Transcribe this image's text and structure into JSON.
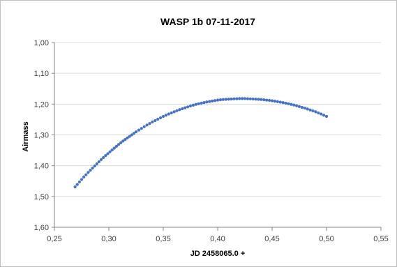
{
  "chart_data": {
    "type": "scatter",
    "title": "WASP 1b 07-11-2017",
    "xlabel": "JD 2458065.0 +",
    "ylabel": "Airmass",
    "xlim": [
      0.25,
      0.55
    ],
    "ylim": [
      1.0,
      1.6
    ],
    "y_reversed": true,
    "x_ticks": [
      "0,25",
      "0,30",
      "0,35",
      "0,40",
      "0,45",
      "0,50",
      "0,55"
    ],
    "y_ticks": [
      "1,00",
      "1,10",
      "1,20",
      "1,30",
      "1,40",
      "1,50",
      "1,60"
    ],
    "grid": "horizontal",
    "legend": "none",
    "marker_color": "#4472C4",
    "series": [
      {
        "x": [
          0.269,
          0.273,
          0.277,
          0.281,
          0.285,
          0.289,
          0.293,
          0.297,
          0.301,
          0.305,
          0.309,
          0.313,
          0.317,
          0.321,
          0.325,
          0.33,
          0.335,
          0.34,
          0.345,
          0.35,
          0.355,
          0.36,
          0.365,
          0.37,
          0.375,
          0.38,
          0.385,
          0.39,
          0.395,
          0.4,
          0.405,
          0.41,
          0.415,
          0.42,
          0.425,
          0.43,
          0.435,
          0.44,
          0.445,
          0.45,
          0.455,
          0.46,
          0.465,
          0.47,
          0.475,
          0.48,
          0.485,
          0.49,
          0.495,
          0.5
        ],
        "y": [
          1.469,
          1.453,
          1.437,
          1.422,
          1.408,
          1.394,
          1.38,
          1.367,
          1.355,
          1.343,
          1.331,
          1.32,
          1.31,
          1.3,
          1.29,
          1.279,
          1.268,
          1.258,
          1.249,
          1.24,
          1.232,
          1.225,
          1.218,
          1.212,
          1.206,
          1.201,
          1.197,
          1.193,
          1.19,
          1.187,
          1.185,
          1.184,
          1.183,
          1.182,
          1.182,
          1.183,
          1.184,
          1.185,
          1.187,
          1.189,
          1.192,
          1.195,
          1.199,
          1.203,
          1.208,
          1.213,
          1.219,
          1.225,
          1.232,
          1.24
        ]
      }
    ]
  }
}
